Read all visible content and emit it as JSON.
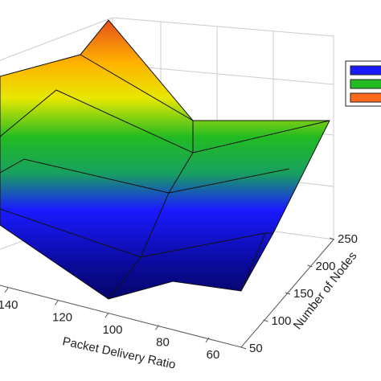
{
  "chart_data": {
    "type": "surface",
    "x_label": "Packet Delivery Ratio",
    "y_label": "Number of Nodes",
    "xticks": [
      140,
      120,
      100,
      80,
      60
    ],
    "yticks": [
      250,
      200,
      150,
      100,
      50
    ],
    "legend_colors": [
      "#1a1aff",
      "#22bb22",
      "#ff6a1a"
    ]
  }
}
